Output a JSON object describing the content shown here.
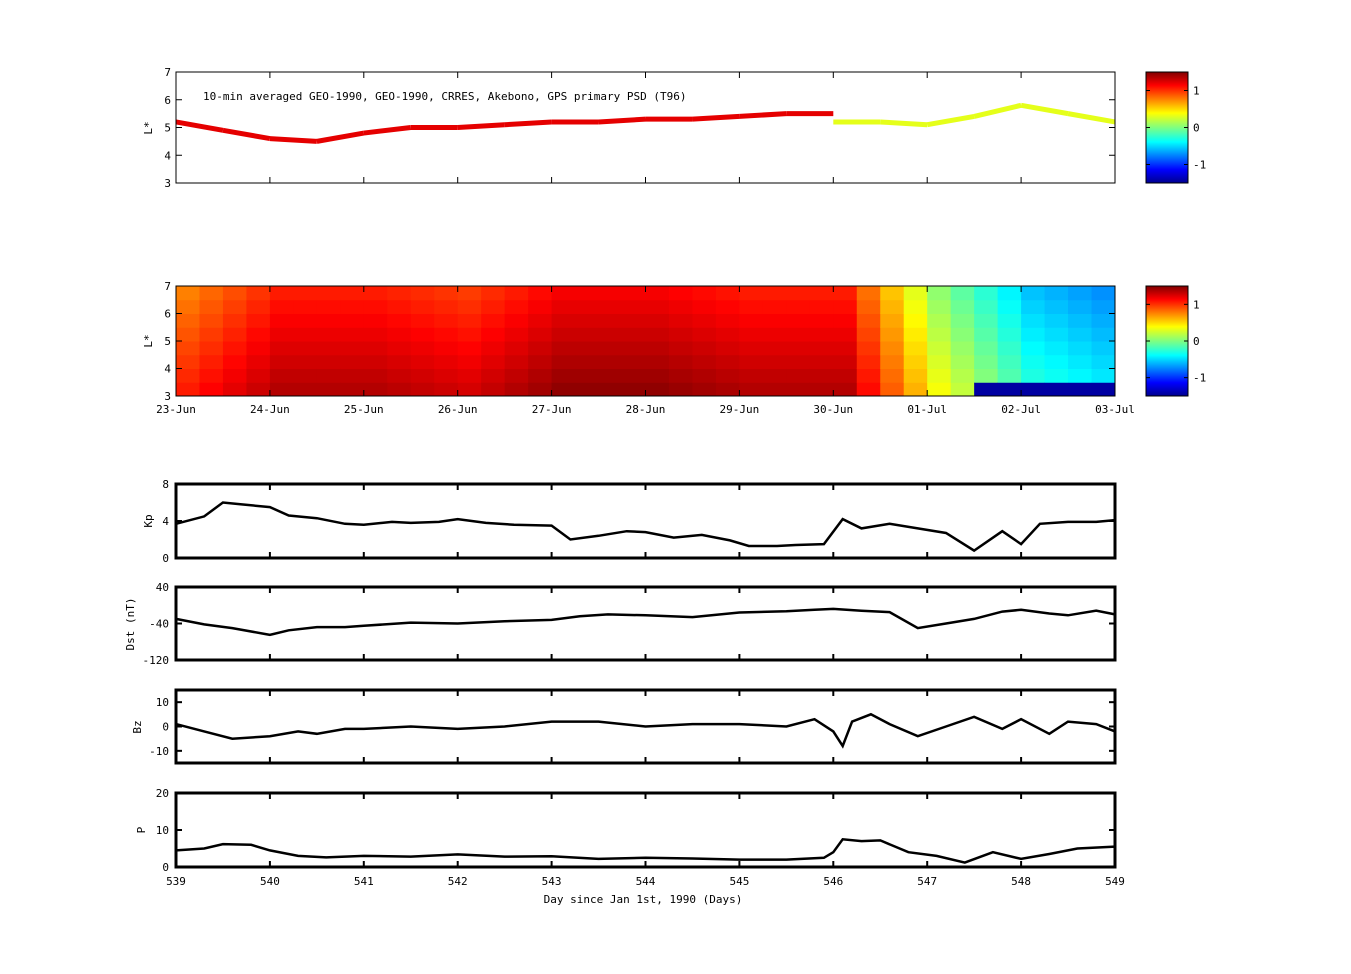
{
  "chart_data": [
    {
      "type": "scatter",
      "panel": "psd-observations",
      "title": "10-min averaged GEO-1990, GEO-1990, CRRES, Akebono, GPS  primary PSD (T96)",
      "ylabel": "L*",
      "xlim": [
        539,
        549
      ],
      "ylim": [
        3,
        7
      ],
      "yticks": [
        "3",
        "4",
        "5",
        "6",
        "7"
      ],
      "colorbar": {
        "ticks": [
          "1",
          "0",
          "-1"
        ],
        "range": [
          -1.5,
          1.5
        ],
        "colormap": "jet"
      },
      "series": [
        {
          "color_value": 1.2,
          "points": [
            [
              539.0,
              5.2
            ],
            [
              539.5,
              4.9
            ],
            [
              540.0,
              4.6
            ],
            [
              540.5,
              4.5
            ],
            [
              541.0,
              4.8
            ],
            [
              541.5,
              5.0
            ],
            [
              542.0,
              5.0
            ],
            [
              542.5,
              5.1
            ],
            [
              543.0,
              5.2
            ],
            [
              543.5,
              5.2
            ],
            [
              544.0,
              5.3
            ],
            [
              544.5,
              5.3
            ],
            [
              545.0,
              5.4
            ],
            [
              545.5,
              5.5
            ],
            [
              546.0,
              5.5
            ]
          ]
        },
        {
          "color_value": 0.3,
          "points": [
            [
              546.0,
              5.2
            ],
            [
              546.5,
              5.2
            ],
            [
              547.0,
              5.1
            ],
            [
              547.5,
              5.4
            ],
            [
              548.0,
              5.8
            ],
            [
              548.5,
              5.5
            ],
            [
              549.0,
              5.2
            ]
          ]
        }
      ]
    },
    {
      "type": "heatmap",
      "panel": "psd-reanalysis",
      "ylabel": "L*",
      "xlim": [
        539,
        549
      ],
      "ylim": [
        3,
        7
      ],
      "yticks": [
        "3",
        "4",
        "5",
        "6",
        "7"
      ],
      "xtick_labels": [
        "23-Jun",
        "24-Jun",
        "25-Jun",
        "26-Jun",
        "27-Jun",
        "28-Jun",
        "29-Jun",
        "30-Jun",
        "01-Jul",
        "02-Jul",
        "03-Jul"
      ],
      "colorbar": {
        "ticks": [
          "1",
          "0",
          "-1"
        ],
        "range": [
          -1.5,
          1.5
        ],
        "colormap": "jet"
      },
      "values_by_day": [
        0.9,
        1.2,
        1.2,
        1.1,
        1.3,
        1.3,
        1.2,
        1.2,
        0.2,
        -0.4,
        -0.6
      ]
    },
    {
      "type": "line",
      "panel": "kp",
      "ylabel": "Kp",
      "xlim": [
        539,
        549
      ],
      "ylim": [
        0,
        8
      ],
      "yticks": [
        "0",
        "4",
        "8"
      ],
      "x": [
        539.0,
        539.3,
        539.5,
        539.7,
        540.0,
        540.2,
        540.5,
        540.8,
        541.0,
        541.3,
        541.5,
        541.8,
        542.0,
        542.3,
        542.6,
        543.0,
        543.2,
        543.5,
        543.8,
        544.0,
        544.3,
        544.6,
        544.9,
        545.1,
        545.4,
        545.6,
        545.9,
        546.1,
        546.3,
        546.6,
        546.9,
        547.2,
        547.5,
        547.8,
        548.0,
        548.2,
        548.5,
        548.8,
        549.0
      ],
      "y": [
        3.7,
        4.5,
        6.0,
        5.8,
        5.5,
        4.6,
        4.3,
        3.7,
        3.6,
        3.9,
        3.8,
        3.9,
        4.2,
        3.8,
        3.6,
        3.5,
        2.0,
        2.4,
        2.9,
        2.8,
        2.2,
        2.5,
        1.9,
        1.3,
        1.3,
        1.4,
        1.5,
        4.2,
        3.2,
        3.7,
        3.2,
        2.7,
        0.8,
        2.9,
        1.5,
        3.7,
        3.9,
        3.9,
        4.1
      ]
    },
    {
      "type": "line",
      "panel": "dst",
      "ylabel": "Dst (nT)",
      "xlim": [
        539,
        549
      ],
      "ylim": [
        -120,
        40
      ],
      "yticks": [
        "-120",
        "-40",
        "40"
      ],
      "x": [
        539.0,
        539.3,
        539.6,
        540.0,
        540.2,
        540.5,
        540.8,
        541.0,
        541.5,
        542.0,
        542.5,
        543.0,
        543.3,
        543.6,
        544.0,
        544.5,
        545.0,
        545.5,
        545.8,
        546.0,
        546.3,
        546.6,
        546.9,
        547.2,
        547.5,
        547.8,
        548.0,
        548.3,
        548.5,
        548.8,
        549.0
      ],
      "y": [
        -30,
        -42,
        -50,
        -65,
        -55,
        -48,
        -48,
        -45,
        -38,
        -40,
        -35,
        -32,
        -24,
        -20,
        -22,
        -26,
        -16,
        -13,
        -10,
        -8,
        -12,
        -15,
        -50,
        -40,
        -30,
        -14,
        -10,
        -18,
        -22,
        -12,
        -20
      ]
    },
    {
      "type": "line",
      "panel": "bz",
      "ylabel": "Bz",
      "xlim": [
        539,
        549
      ],
      "ylim": [
        -15,
        15
      ],
      "yticks": [
        "-10",
        "0",
        "10"
      ],
      "x": [
        539.0,
        539.3,
        539.6,
        540.0,
        540.3,
        540.5,
        540.8,
        541.0,
        541.5,
        542.0,
        542.5,
        543.0,
        543.5,
        544.0,
        544.5,
        545.0,
        545.5,
        545.8,
        546.0,
        546.1,
        546.2,
        546.4,
        546.6,
        546.9,
        547.2,
        547.5,
        547.8,
        548.0,
        548.3,
        548.5,
        548.8,
        549.0
      ],
      "y": [
        1,
        -2,
        -5,
        -4,
        -2,
        -3,
        -1,
        -1,
        0,
        -1,
        0,
        2,
        2,
        0,
        1,
        1,
        0,
        3,
        -2,
        -8,
        2,
        5,
        1,
        -4,
        0,
        4,
        -1,
        3,
        -3,
        2,
        1,
        -2
      ]
    },
    {
      "type": "line",
      "panel": "p",
      "ylabel": "P",
      "xlim": [
        539,
        549
      ],
      "ylim": [
        0,
        20
      ],
      "yticks": [
        "0",
        "10",
        "20"
      ],
      "xtick_labels": [
        "539",
        "540",
        "541",
        "542",
        "543",
        "544",
        "545",
        "546",
        "547",
        "548",
        "549"
      ],
      "xlabel": "Day since Jan 1st, 1990 (Days)",
      "x": [
        539.0,
        539.3,
        539.5,
        539.8,
        540.0,
        540.3,
        540.6,
        541.0,
        541.5,
        542.0,
        542.5,
        543.0,
        543.5,
        544.0,
        544.5,
        545.0,
        545.5,
        545.9,
        546.0,
        546.1,
        546.3,
        546.5,
        546.8,
        547.1,
        547.4,
        547.7,
        548.0,
        548.3,
        548.6,
        549.0
      ],
      "y": [
        4.5,
        5,
        6.2,
        6,
        4.5,
        3,
        2.6,
        3,
        2.8,
        3.4,
        2.8,
        2.9,
        2.2,
        2.5,
        2.3,
        2,
        2,
        2.5,
        4,
        7.5,
        7,
        7.2,
        4,
        3,
        1.2,
        4,
        2.2,
        3.5,
        5,
        5.5
      ]
    }
  ]
}
